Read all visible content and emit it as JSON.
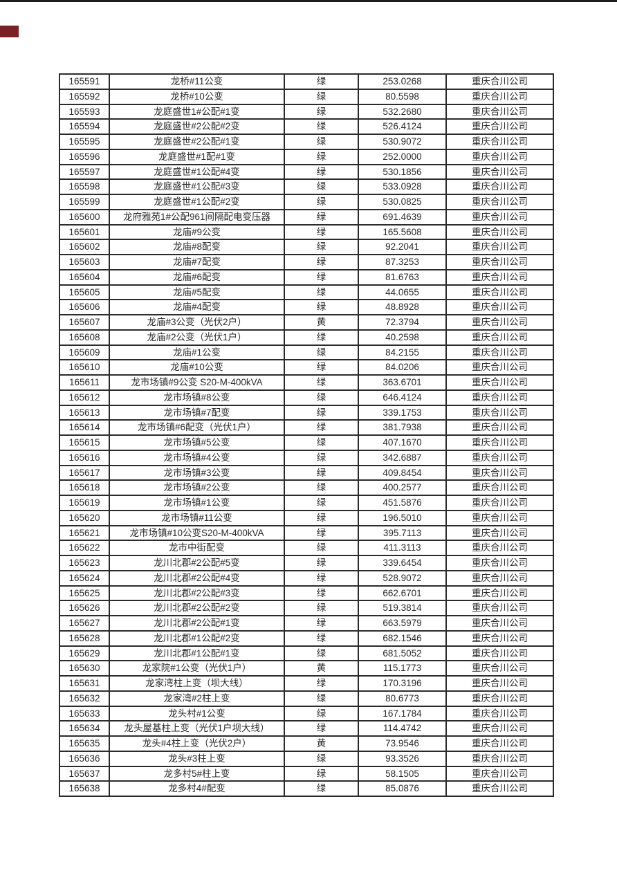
{
  "page": {
    "colors": {
      "background": "#ffffff",
      "text": "#2a2a2a",
      "grid": "#2b2b2b",
      "top_rule": "#1d1d1d",
      "marker": "#7a2127"
    }
  },
  "table": {
    "columns": [
      "id",
      "name",
      "status",
      "value",
      "company"
    ],
    "rows": [
      [
        "165591",
        "龙桥#11公变",
        "绿",
        "253.0268",
        "重庆合川公司"
      ],
      [
        "165592",
        "龙桥#10公变",
        "绿",
        "80.5598",
        "重庆合川公司"
      ],
      [
        "165593",
        "龙庭盛世1#公配#1变",
        "绿",
        "532.2680",
        "重庆合川公司"
      ],
      [
        "165594",
        "龙庭盛世#2公配#2变",
        "绿",
        "526.4124",
        "重庆合川公司"
      ],
      [
        "165595",
        "龙庭盛世#2公配#1变",
        "绿",
        "530.9072",
        "重庆合川公司"
      ],
      [
        "165596",
        "龙庭盛世#1配#1变",
        "绿",
        "252.0000",
        "重庆合川公司"
      ],
      [
        "165597",
        "龙庭盛世#1公配#4变",
        "绿",
        "530.1856",
        "重庆合川公司"
      ],
      [
        "165598",
        "龙庭盛世#1公配#3变",
        "绿",
        "533.0928",
        "重庆合川公司"
      ],
      [
        "165599",
        "龙庭盛世#1公配#2变",
        "绿",
        "530.0825",
        "重庆合川公司"
      ],
      [
        "165600",
        "龙府雅苑1#公配961间隔配电变压器",
        "绿",
        "691.4639",
        "重庆合川公司"
      ],
      [
        "165601",
        "龙庙#9公变",
        "绿",
        "165.5608",
        "重庆合川公司"
      ],
      [
        "165602",
        "龙庙#8配变",
        "绿",
        "92.2041",
        "重庆合川公司"
      ],
      [
        "165603",
        "龙庙#7配变",
        "绿",
        "87.3253",
        "重庆合川公司"
      ],
      [
        "165604",
        "龙庙#6配变",
        "绿",
        "81.6763",
        "重庆合川公司"
      ],
      [
        "165605",
        "龙庙#5配变",
        "绿",
        "44.0655",
        "重庆合川公司"
      ],
      [
        "165606",
        "龙庙#4配变",
        "绿",
        "48.8928",
        "重庆合川公司"
      ],
      [
        "165607",
        "龙庙#3公变（光伏2户）",
        "黄",
        "72.3794",
        "重庆合川公司"
      ],
      [
        "165608",
        "龙庙#2公变（光伏1户）",
        "绿",
        "40.2598",
        "重庆合川公司"
      ],
      [
        "165609",
        "龙庙#1公变",
        "绿",
        "84.2155",
        "重庆合川公司"
      ],
      [
        "165610",
        "龙庙#10公变",
        "绿",
        "84.0206",
        "重庆合川公司"
      ],
      [
        "165611",
        "龙市场镇#9公变 S20-M-400kVA",
        "绿",
        "363.6701",
        "重庆合川公司"
      ],
      [
        "165612",
        "龙市场镇#8公变",
        "绿",
        "646.4124",
        "重庆合川公司"
      ],
      [
        "165613",
        "龙市场镇#7配变",
        "绿",
        "339.1753",
        "重庆合川公司"
      ],
      [
        "165614",
        "龙市场镇#6配变（光伏1户）",
        "绿",
        "381.7938",
        "重庆合川公司"
      ],
      [
        "165615",
        "龙市场镇#5公变",
        "绿",
        "407.1670",
        "重庆合川公司"
      ],
      [
        "165616",
        "龙市场镇#4公变",
        "绿",
        "342.6887",
        "重庆合川公司"
      ],
      [
        "165617",
        "龙市场镇#3公变",
        "绿",
        "409.8454",
        "重庆合川公司"
      ],
      [
        "165618",
        "龙市场镇#2公变",
        "绿",
        "400.2577",
        "重庆合川公司"
      ],
      [
        "165619",
        "龙市场镇#1公变",
        "绿",
        "451.5876",
        "重庆合川公司"
      ],
      [
        "165620",
        "龙市场镇#11公变",
        "绿",
        "196.5010",
        "重庆合川公司"
      ],
      [
        "165621",
        "龙市场镇#10公变S20-M-400kVA",
        "绿",
        "395.7113",
        "重庆合川公司"
      ],
      [
        "165622",
        "龙市中街配变",
        "绿",
        "411.3113",
        "重庆合川公司"
      ],
      [
        "165623",
        "龙川北郡#2公配#5变",
        "绿",
        "339.6454",
        "重庆合川公司"
      ],
      [
        "165624",
        "龙川北郡#2公配#4变",
        "绿",
        "528.9072",
        "重庆合川公司"
      ],
      [
        "165625",
        "龙川北郡#2公配#3变",
        "绿",
        "662.6701",
        "重庆合川公司"
      ],
      [
        "165626",
        "龙川北郡#2公配#2变",
        "绿",
        "519.3814",
        "重庆合川公司"
      ],
      [
        "165627",
        "龙川北郡#2公配#1变",
        "绿",
        "663.5979",
        "重庆合川公司"
      ],
      [
        "165628",
        "龙川北郡#1公配#2变",
        "绿",
        "682.1546",
        "重庆合川公司"
      ],
      [
        "165629",
        "龙川北郡#1公配#1变",
        "绿",
        "681.5052",
        "重庆合川公司"
      ],
      [
        "165630",
        "龙家院#1公变（光伏1户）",
        "黄",
        "115.1773",
        "重庆合川公司"
      ],
      [
        "165631",
        "龙家湾柱上变（坝大线）",
        "绿",
        "170.3196",
        "重庆合川公司"
      ],
      [
        "165632",
        "龙家湾#2柱上变",
        "绿",
        "80.6773",
        "重庆合川公司"
      ],
      [
        "165633",
        "龙头村#1公变",
        "绿",
        "167.1784",
        "重庆合川公司"
      ],
      [
        "165634",
        "龙头屋基柱上变（光伏1户坝大线）",
        "绿",
        "114.4742",
        "重庆合川公司"
      ],
      [
        "165635",
        "龙头#4柱上变（光伏2户）",
        "黄",
        "73.9546",
        "重庆合川公司"
      ],
      [
        "165636",
        "龙头#3柱上变",
        "绿",
        "93.3526",
        "重庆合川公司"
      ],
      [
        "165637",
        "龙多村5#柱上变",
        "绿",
        "58.1505",
        "重庆合川公司"
      ],
      [
        "165638",
        "龙多村4#配变",
        "绿",
        "85.0876",
        "重庆合川公司"
      ]
    ]
  }
}
